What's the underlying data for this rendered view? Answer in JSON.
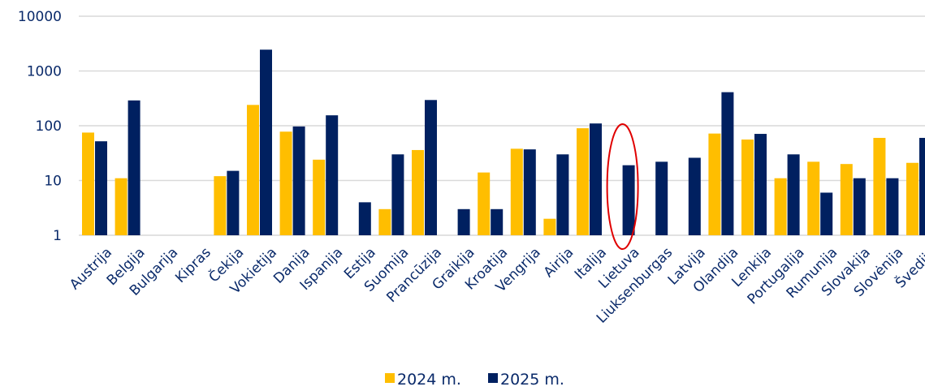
{
  "chart_data": {
    "type": "bar",
    "yscale": "log",
    "ylim": [
      1,
      10000
    ],
    "yticks": [
      "1",
      "10",
      "100",
      "1000",
      "10000"
    ],
    "grid": true,
    "legend_position": "bottom",
    "categories": [
      "Austrija",
      "Belgija",
      "Bulgarija",
      "Kipras",
      "Čekija",
      "Vokietija",
      "Danija",
      "Ispanija",
      "Estija",
      "Suomija",
      "Prancūzija",
      "Graikija",
      "Kroatija",
      "Vengrija",
      "Airija",
      "Italija",
      "Lietuva",
      "Liuksenburgas",
      "Latvija",
      "Olandija",
      "Lenkija",
      "Portugalija",
      "Rumunija",
      "Slovakija",
      "Slovėnija",
      "Švedija"
    ],
    "series": [
      {
        "name": "2024 m.",
        "color": "#FFBE00",
        "values": [
          75,
          11,
          null,
          null,
          12,
          240,
          78,
          24,
          null,
          3,
          36,
          null,
          14,
          38,
          2,
          90,
          null,
          null,
          null,
          72,
          56,
          11,
          22,
          20,
          60,
          21
        ]
      },
      {
        "name": "2025 m.",
        "color": "#002060",
        "values": [
          52,
          290,
          null,
          null,
          15,
          2450,
          97,
          155,
          4,
          30,
          295,
          3,
          3,
          37,
          30,
          110,
          19,
          22,
          26,
          410,
          71,
          30,
          6,
          11,
          11,
          60
        ]
      }
    ],
    "highlight": {
      "category": "Lietuva",
      "shape": "ellipse",
      "color": "#E00000"
    }
  }
}
